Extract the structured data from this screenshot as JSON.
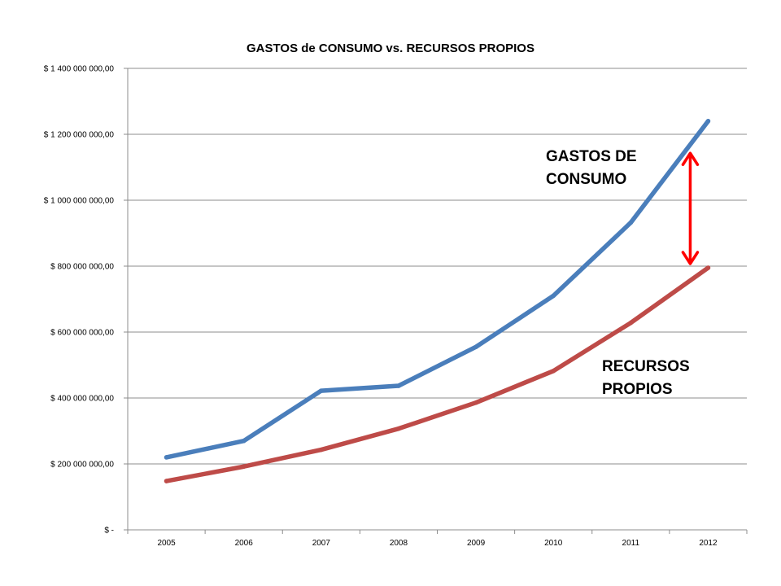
{
  "chart_data": {
    "type": "line",
    "title": "GASTOS de CONSUMO vs. RECURSOS PROPIOS",
    "xlabel": "",
    "ylabel": "",
    "categories": [
      "2005",
      "2006",
      "2007",
      "2008",
      "2009",
      "2010",
      "2011",
      "2012"
    ],
    "ylim": [
      0,
      1400000000
    ],
    "yticks": [
      0,
      200000000,
      400000000,
      600000000,
      800000000,
      1000000000,
      1200000000,
      1400000000
    ],
    "ytick_labels": [
      "$ -",
      "$ 200 000 000,00",
      "$ 400 000 000,00",
      "$ 600 000 000,00",
      "$ 800 000 000,00",
      "$ 1 000 000 000,00",
      "$ 1 200 000 000,00",
      "$ 1 400 000 000,00"
    ],
    "grid": true,
    "legend": "none",
    "series": [
      {
        "key": "gastos",
        "color": "#4a7ebb",
        "values": [
          220000000,
          270000000,
          422000000,
          437000000,
          555000000,
          710000000,
          932000000,
          1240000000
        ]
      },
      {
        "key": "recursos",
        "color": "#be4b48",
        "values": [
          148000000,
          192000000,
          243000000,
          307000000,
          386000000,
          482000000,
          628000000,
          795000000
        ]
      }
    ],
    "annotations": [
      {
        "name": "gastos-label",
        "lines": [
          "GASTOS DE",
          "CONSUMO"
        ]
      },
      {
        "name": "recursos-label",
        "lines": [
          "RECURSOS",
          "PROPIOS"
        ]
      }
    ],
    "gap_arrow": {
      "category": "2012",
      "from": 1150000000,
      "to": 800000000,
      "color": "#ff0000"
    }
  }
}
